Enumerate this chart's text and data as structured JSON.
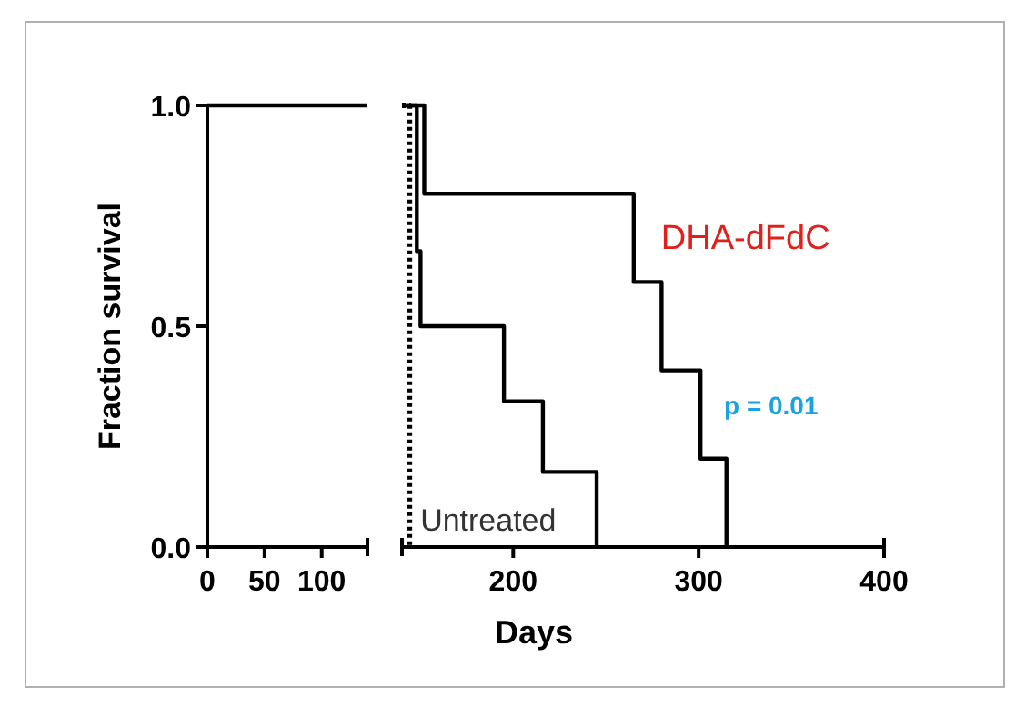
{
  "chart_data": [
    {
      "type": "step",
      "ylabel": "Fraction survival",
      "xlim": [
        0,
        140
      ],
      "xticks": [
        0,
        50,
        100
      ],
      "ylim": [
        0,
        1
      ],
      "yticks": [
        {
          "value": 0,
          "label": "0.0"
        },
        {
          "value": 0.5,
          "label": "0.5"
        },
        {
          "value": 1,
          "label": "1.0"
        }
      ],
      "grid": false,
      "series": [
        {
          "color": "#000000",
          "x": [
            0,
            140
          ],
          "values": [
            1,
            1
          ]
        }
      ]
    },
    {
      "type": "step",
      "xlabel": "Days",
      "xlim": [
        140,
        400
      ],
      "xticks": [
        200,
        300,
        400
      ],
      "ylim": [
        0,
        1
      ],
      "tick_labels": "x",
      "grid": false,
      "annotations": [
        "p = 0.01"
      ],
      "series": [
        {
          "name": "Untreated",
          "color": "#000000",
          "line_style": "dotted",
          "x": [
            140,
            144
          ],
          "values": [
            1,
            0
          ]
        },
        {
          "color": "#000000",
          "x": [
            140,
            148,
            150,
            195,
            216,
            245
          ],
          "values": [
            1,
            0.67,
            0.5,
            0.33,
            0.17,
            0
          ]
        },
        {
          "name": "DHA-dFdC",
          "color": "#000000",
          "x": [
            140,
            152,
            265,
            280,
            301,
            315
          ],
          "values": [
            1,
            0.8,
            0.6,
            0.4,
            0.2,
            0
          ]
        }
      ]
    }
  ]
}
